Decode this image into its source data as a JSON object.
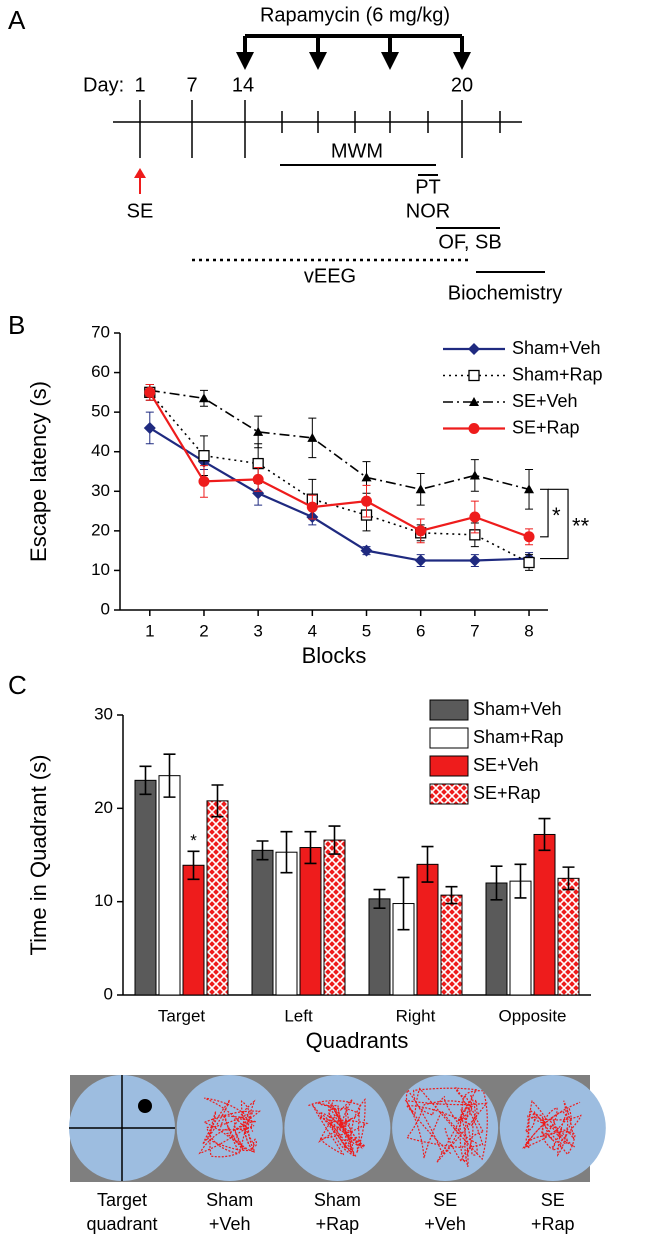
{
  "panel_a": {
    "label": "A",
    "treatment": "Rapamycin (6 mg/kg)",
    "day_prefix": "Day:",
    "days": [
      "1",
      "7",
      "14",
      "20"
    ],
    "events": {
      "se": "SE",
      "mwm": "MWM",
      "pt": "PT",
      "nor": "NOR",
      "of_sb": "OF, SB",
      "veeg": "vEEG",
      "biochemistry": "Biochemistry"
    }
  },
  "chart_data": [
    {
      "type": "line",
      "panel_label": "B",
      "x_label": "Blocks",
      "y_label": "Escape latency (s)",
      "x": [
        1,
        2,
        3,
        4,
        5,
        6,
        7,
        8
      ],
      "xlim": [
        0.45,
        8.35
      ],
      "xticks": [
        1,
        2,
        3,
        4,
        5,
        6,
        7,
        8
      ],
      "ylim": [
        0,
        70
      ],
      "yticks": [
        0,
        10,
        20,
        30,
        40,
        50,
        60,
        70
      ],
      "legend": "upper right",
      "series": [
        {
          "name": "Sham+Veh",
          "color": "#1f2a80",
          "line_style": "solid",
          "marker": "diamond",
          "values": [
            46,
            37.5,
            29.5,
            23.5,
            15,
            12.5,
            12.5,
            13
          ],
          "errors": [
            4,
            2,
            3,
            2,
            1,
            1.5,
            1.5,
            1.5
          ]
        },
        {
          "name": "Sham+Rap",
          "color": "#000000",
          "line_style": "dotted",
          "marker": "square-open",
          "values": [
            55,
            39,
            37,
            28,
            24,
            19.5,
            19,
            12
          ],
          "errors": [
            2,
            5,
            5,
            5,
            4,
            2,
            3,
            2
          ]
        },
        {
          "name": "SE+Veh",
          "color": "#000000",
          "line_style": "dashdot",
          "marker": "triangle",
          "values": [
            55.5,
            53.5,
            45,
            43.5,
            33.5,
            30.5,
            34,
            30.5
          ],
          "errors": [
            1.5,
            2,
            4,
            5,
            4,
            4,
            4,
            5
          ]
        },
        {
          "name": "SE+Rap",
          "color": "#ee1c1c",
          "line_style": "solid",
          "marker": "circle",
          "values": [
            55,
            32.5,
            33,
            26,
            27.5,
            20,
            23.5,
            18.5
          ],
          "errors": [
            2,
            4,
            3,
            3,
            4,
            3,
            4,
            2
          ]
        }
      ],
      "significance": [
        "*",
        "**"
      ]
    },
    {
      "type": "bar",
      "panel_label": "C",
      "x_label": "Quadrants",
      "y_label": "Time in Quadrant (s)",
      "categories": [
        "Target",
        "Left",
        "Right",
        "Opposite"
      ],
      "ylim": [
        0,
        30
      ],
      "yticks": [
        0,
        10,
        20,
        30
      ],
      "legend": "upper right",
      "series": [
        {
          "name": "Sham+Veh",
          "color": "#5a5a5a",
          "pattern": "solid",
          "values": [
            23,
            15.5,
            10.3,
            12
          ],
          "errors": [
            1.5,
            1,
            1,
            1.8
          ]
        },
        {
          "name": "Sham+Rap",
          "color": "#ffffff",
          "pattern": "solid",
          "values": [
            23.5,
            15.3,
            9.8,
            12.2
          ],
          "errors": [
            2.3,
            2.2,
            2.8,
            1.8
          ]
        },
        {
          "name": "SE+Veh",
          "color": "#ee1c1c",
          "pattern": "solid",
          "values": [
            13.9,
            15.8,
            14,
            17.2
          ],
          "errors": [
            1.5,
            1.7,
            1.9,
            1.7
          ]
        },
        {
          "name": "SE+Rap",
          "color": "#ee1c1c",
          "pattern": "crosshatch",
          "values": [
            20.8,
            16.6,
            10.7,
            12.5
          ],
          "errors": [
            1.7,
            1.5,
            0.9,
            1.2
          ]
        }
      ],
      "significance": [
        "*"
      ]
    }
  ],
  "panel_d": {
    "labels": [
      [
        "Target",
        "quadrant"
      ],
      [
        "Sham",
        "+Veh"
      ],
      [
        "Sham",
        "+Rap"
      ],
      [
        "SE",
        "+Veh"
      ],
      [
        "SE",
        "+Rap"
      ]
    ]
  }
}
